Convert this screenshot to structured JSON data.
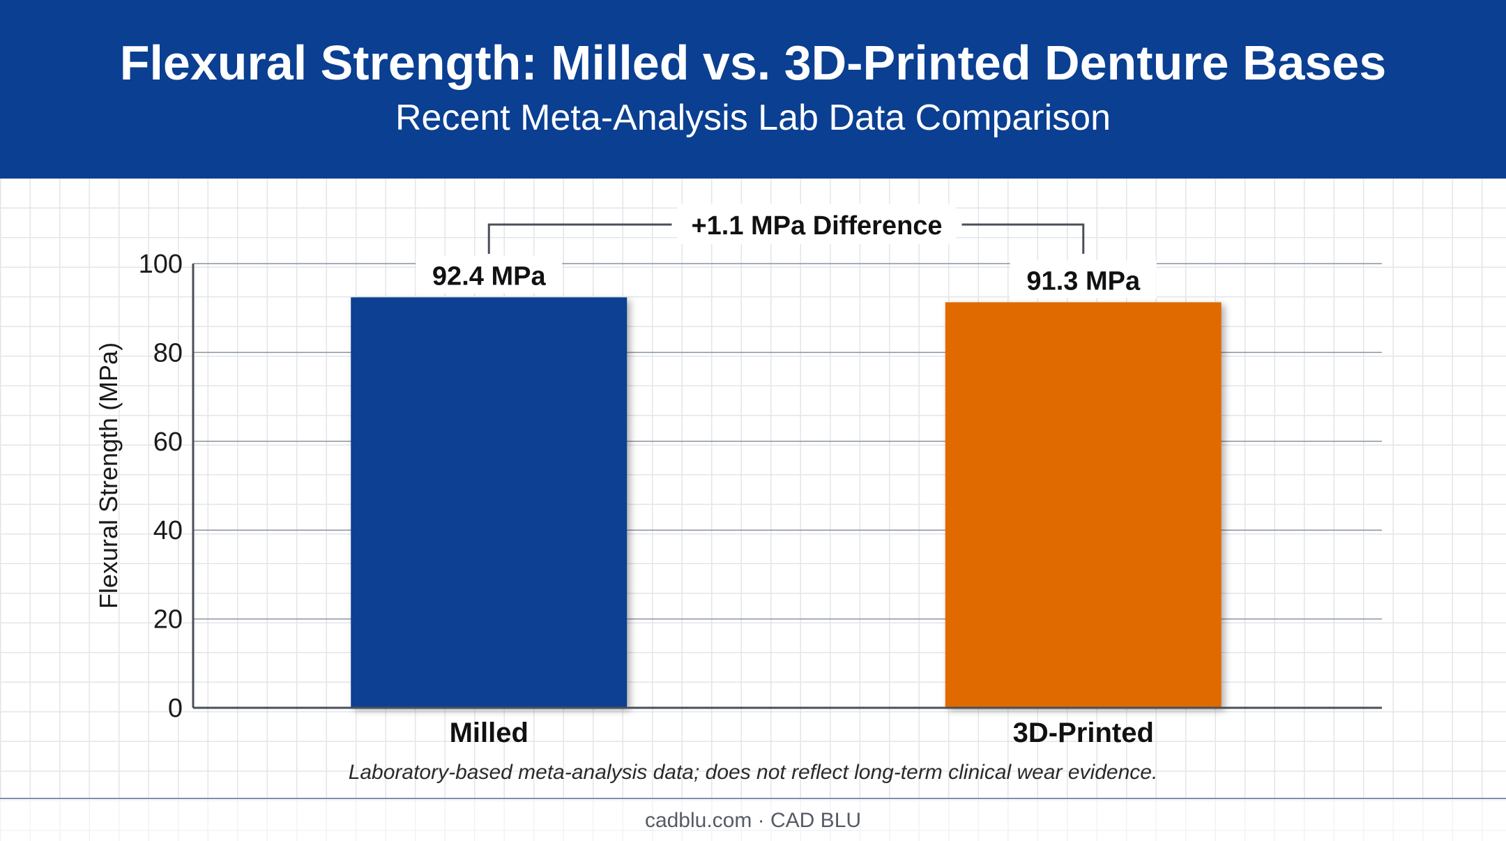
{
  "header": {
    "title": "Flexural Strength: Milled vs. 3D-Printed Denture Bases",
    "subtitle": "Recent Meta-Analysis Lab Data Comparison"
  },
  "colors": {
    "header_bg": "#0a3f92",
    "milled": "#0a3f92",
    "printed": "#e06a05"
  },
  "chart_data": {
    "type": "bar",
    "categories": [
      "Milled",
      "3D-Printed"
    ],
    "values": [
      92.4,
      91.3
    ],
    "value_labels": [
      "92.4 MPa",
      "91.3 MPa"
    ],
    "ylabel": "Flexural Strength (MPa)",
    "ylim": [
      0,
      100
    ],
    "yticks": [
      "0",
      "20",
      "40",
      "60",
      "80",
      "100"
    ],
    "grid": true,
    "legend": "none",
    "annotation": "+1.1 MPa Difference"
  },
  "footnote": "Laboratory-based meta-analysis data; does not reflect long-term clinical wear evidence.",
  "source": "cadblu.com · CAD BLU"
}
